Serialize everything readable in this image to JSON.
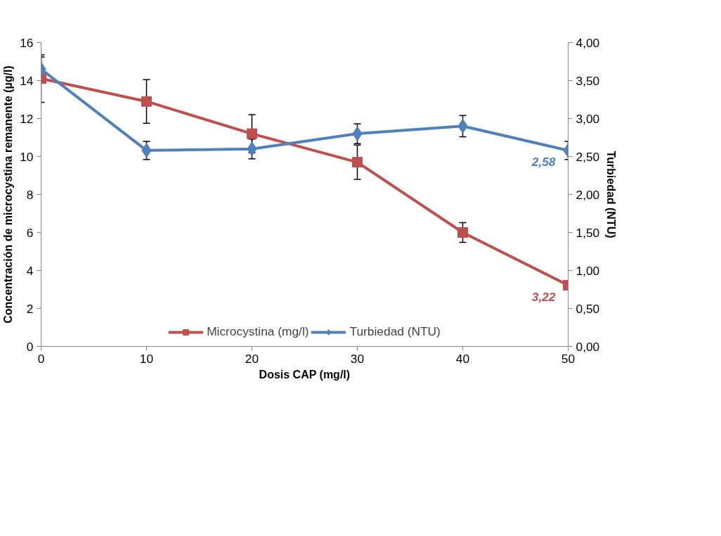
{
  "chart_data": {
    "type": "line",
    "xlabel": "Dosis CAP (mg/l)",
    "ylabel": "Concentración de microcystina remanente (µg/l)",
    "y2label": "Turbiedad (NTU)",
    "x": [
      0,
      10,
      20,
      30,
      40,
      50
    ],
    "xlim": [
      0,
      50
    ],
    "xticks": [
      0,
      10,
      20,
      30,
      40,
      50
    ],
    "ylim": [
      0,
      16
    ],
    "yticks": [
      0,
      2,
      4,
      6,
      8,
      10,
      12,
      14,
      16
    ],
    "y2lim": [
      0,
      4
    ],
    "y2ticks": [
      {
        "value": 0,
        "label": "0,00"
      },
      {
        "value": 0.5,
        "label": "0,50"
      },
      {
        "value": 1,
        "label": "1,00"
      },
      {
        "value": 1.5,
        "label": "1,50"
      },
      {
        "value": 2,
        "label": "2,00"
      },
      {
        "value": 2.5,
        "label": "2,50"
      },
      {
        "value": 3,
        "label": "3,00"
      },
      {
        "value": 3.5,
        "label": "3,50"
      },
      {
        "value": 4,
        "label": "4,00"
      }
    ],
    "grid": false,
    "legend": "bottom",
    "series": [
      {
        "name": "Microcystina (mg/l)",
        "color": "#c0504d",
        "marker": "square",
        "values": [
          14.1,
          12.9,
          11.2,
          9.7,
          6.0,
          3.22
        ],
        "errors": [
          1.25,
          1.15,
          1.0,
          0.9,
          0.52,
          null
        ],
        "value_labels": [
          null,
          null,
          null,
          null,
          null,
          "3,22"
        ]
      },
      {
        "name": "Turbiedad (NTU)",
        "color": "#4f81bd",
        "marker": "diamond",
        "axis": "y2",
        "values": [
          3.65,
          2.58,
          2.6,
          2.8,
          2.9,
          2.58
        ],
        "errors": [
          0.16,
          0.12,
          0.13,
          0.13,
          0.14,
          0.12
        ],
        "value_labels": [
          null,
          null,
          null,
          null,
          null,
          "2,58"
        ]
      }
    ]
  }
}
